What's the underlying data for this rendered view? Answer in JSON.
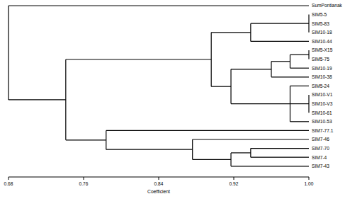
{
  "chart_data": {
    "type": "dendrogram",
    "x_label": "Coefficient",
    "xlim": [
      0.68,
      1.0
    ],
    "xticks": [
      {
        "value": 0.68,
        "label": "0.68"
      },
      {
        "value": 0.76,
        "label": "0.76"
      },
      {
        "value": 0.84,
        "label": "0.84"
      },
      {
        "value": 0.92,
        "label": "0.92"
      },
      {
        "value": 1.0,
        "label": "1.00"
      }
    ],
    "color": "#000000",
    "tree": {
      "height": 0.68,
      "children": [
        {
          "label": "SumPontianak"
        },
        {
          "height": 0.741,
          "children": [
            {
              "height": 0.896,
              "children": [
                {
                  "height": 0.938,
                  "children": [
                    {
                      "height": 1.0,
                      "children": [
                        {
                          "label": "SIM5-5"
                        },
                        {
                          "label": "SIM5-83"
                        },
                        {
                          "label": "SIM10-18"
                        }
                      ]
                    },
                    {
                      "label": "SIM10-44"
                    }
                  ]
                },
                {
                  "height": 0.917,
                  "children": [
                    {
                      "height": 0.96,
                      "children": [
                        {
                          "height": 0.98,
                          "children": [
                            {
                              "height": 1.0,
                              "children": [
                                {
                                  "label": "SIM5-X15"
                                },
                                {
                                  "label": "SIM5-75"
                                }
                              ]
                            },
                            {
                              "label": "SIM10-19"
                            }
                          ]
                        },
                        {
                          "label": "SIM10-38"
                        }
                      ]
                    },
                    {
                      "height": 0.98,
                      "children": [
                        {
                          "label": "SIM5-24"
                        },
                        {
                          "height": 1.0,
                          "children": [
                            {
                              "label": "SIM10-V1"
                            },
                            {
                              "label": "SIM10-V3"
                            },
                            {
                              "label": "SIM10-61"
                            }
                          ]
                        },
                        {
                          "label": "SIM10-53"
                        }
                      ]
                    }
                  ]
                }
              ]
            },
            {
              "height": 0.784,
              "children": [
                {
                  "label": "SIM7-77.1"
                },
                {
                  "height": 0.876,
                  "children": [
                    {
                      "label": "SIM7-46"
                    },
                    {
                      "height": 0.917,
                      "children": [
                        {
                          "height": 0.938,
                          "children": [
                            {
                              "label": "SIM7-70"
                            },
                            {
                              "label": "SIM7-4"
                            }
                          ]
                        },
                        {
                          "label": "SIM7-43"
                        }
                      ]
                    }
                  ]
                }
              ]
            }
          ]
        }
      ]
    }
  }
}
